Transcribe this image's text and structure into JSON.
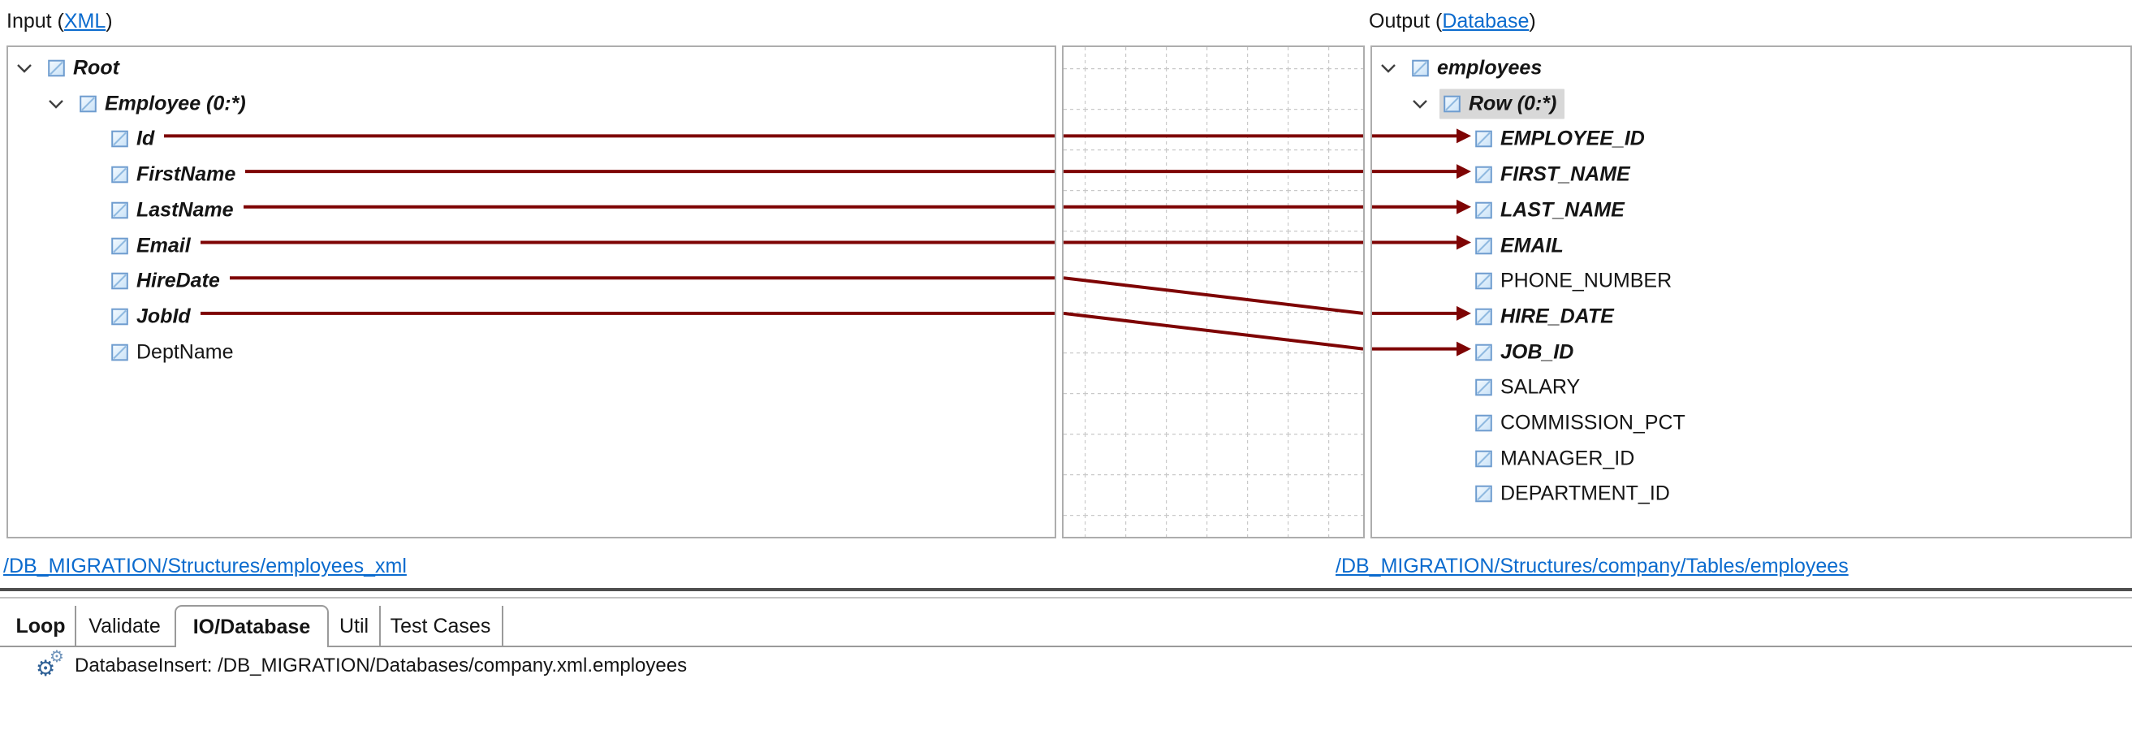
{
  "header": {
    "input_prefix": "Input (",
    "input_link": "XML",
    "input_suffix": ")",
    "output_prefix": "Output (",
    "output_link": "Database",
    "output_suffix": ")"
  },
  "input_tree": [
    {
      "label": "Root",
      "level": 0,
      "expanded": true,
      "mapped": true,
      "selected": false
    },
    {
      "label": "Employee (0:*)",
      "level": 1,
      "expanded": true,
      "mapped": true,
      "selected": false
    },
    {
      "label": "Id",
      "level": 2,
      "expanded": false,
      "mapped": true,
      "selected": false
    },
    {
      "label": "FirstName",
      "level": 2,
      "expanded": false,
      "mapped": true,
      "selected": false
    },
    {
      "label": "LastName",
      "level": 2,
      "expanded": false,
      "mapped": true,
      "selected": false
    },
    {
      "label": "Email",
      "level": 2,
      "expanded": false,
      "mapped": true,
      "selected": false
    },
    {
      "label": "HireDate",
      "level": 2,
      "expanded": false,
      "mapped": true,
      "selected": false
    },
    {
      "label": "JobId",
      "level": 2,
      "expanded": false,
      "mapped": true,
      "selected": false
    },
    {
      "label": "DeptName",
      "level": 2,
      "expanded": false,
      "mapped": false,
      "selected": false
    }
  ],
  "output_tree": [
    {
      "label": "employees",
      "level": 0,
      "expanded": true,
      "mapped": true,
      "selected": false
    },
    {
      "label": "Row (0:*)",
      "level": 1,
      "expanded": true,
      "mapped": true,
      "selected": true
    },
    {
      "label": "EMPLOYEE_ID",
      "level": 2,
      "expanded": false,
      "mapped": true,
      "selected": false
    },
    {
      "label": "FIRST_NAME",
      "level": 2,
      "expanded": false,
      "mapped": true,
      "selected": false
    },
    {
      "label": "LAST_NAME",
      "level": 2,
      "expanded": false,
      "mapped": true,
      "selected": false
    },
    {
      "label": "EMAIL",
      "level": 2,
      "expanded": false,
      "mapped": true,
      "selected": false
    },
    {
      "label": "PHONE_NUMBER",
      "level": 2,
      "expanded": false,
      "mapped": false,
      "selected": false
    },
    {
      "label": "HIRE_DATE",
      "level": 2,
      "expanded": false,
      "mapped": true,
      "selected": false
    },
    {
      "label": "JOB_ID",
      "level": 2,
      "expanded": false,
      "mapped": true,
      "selected": false
    },
    {
      "label": "SALARY",
      "level": 2,
      "expanded": false,
      "mapped": false,
      "selected": false
    },
    {
      "label": "COMMISSION_PCT",
      "level": 2,
      "expanded": false,
      "mapped": false,
      "selected": false
    },
    {
      "label": "MANAGER_ID",
      "level": 2,
      "expanded": false,
      "mapped": false,
      "selected": false
    },
    {
      "label": "DEPARTMENT_ID",
      "level": 2,
      "expanded": false,
      "mapped": false,
      "selected": false
    }
  ],
  "mappings": [
    {
      "from": "Id",
      "to": "EMPLOYEE_ID"
    },
    {
      "from": "FirstName",
      "to": "FIRST_NAME"
    },
    {
      "from": "LastName",
      "to": "LAST_NAME"
    },
    {
      "from": "Email",
      "to": "EMAIL"
    },
    {
      "from": "HireDate",
      "to": "HIRE_DATE"
    },
    {
      "from": "JobId",
      "to": "JOB_ID"
    }
  ],
  "footer_links": {
    "input": "/DB_MIGRATION/Structures/employees_xml",
    "output": "/DB_MIGRATION/Structures/company/Tables/employees"
  },
  "tabs": [
    {
      "label": "Loop",
      "bold": true,
      "selected": false
    },
    {
      "label": "Validate",
      "bold": false,
      "selected": false
    },
    {
      "label": "IO/Database",
      "bold": true,
      "selected": true
    },
    {
      "label": "Util",
      "bold": false,
      "selected": false
    },
    {
      "label": "Test Cases",
      "bold": false,
      "selected": false
    }
  ],
  "status": {
    "icon": "gears-icon",
    "text": "DatabaseInsert: /DB_MIGRATION/Databases/company.xml.employees"
  },
  "colors": {
    "mapping_line": "#7e0404",
    "link_blue": "#0b6bce",
    "panel_border": "#adadad",
    "grid_line": "#c9c9c9",
    "selection_highlight": "#d8d8d8",
    "icon_border": "#6e9ccf",
    "icon_fill_light": "#f4faff",
    "icon_fill_blue": "#c9e2f7"
  }
}
